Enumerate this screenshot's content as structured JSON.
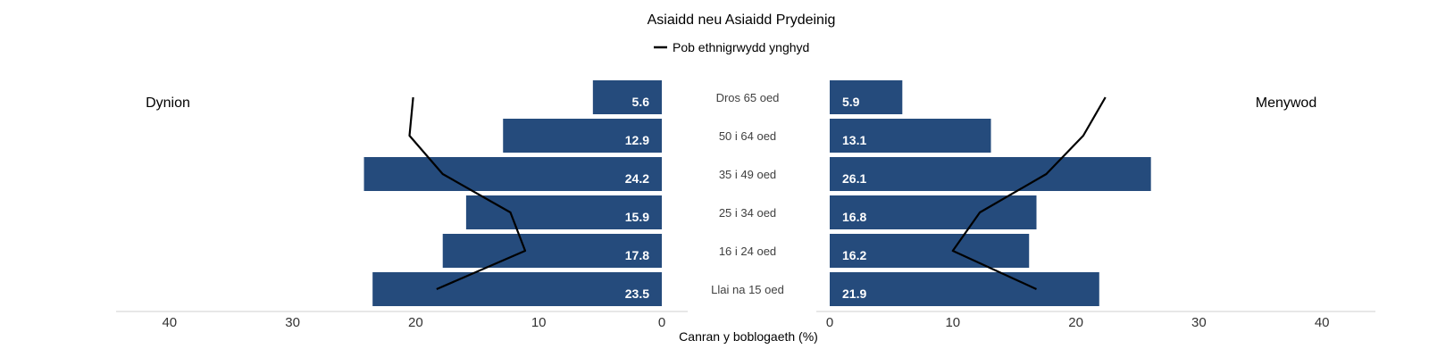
{
  "chart_data": {
    "type": "bar",
    "orientation": "horizontal-population-pyramid",
    "title": "Asiaidd neu Asiaidd Prydeinig",
    "xlabel": "Canran y boblogaeth (%)",
    "legend": {
      "entries": [
        "Pob ethnigrwydd ynghyd"
      ],
      "placement": "top"
    },
    "left_panel_label": "Dynion",
    "right_panel_label": "Menywod",
    "categories": [
      "Dros 65 oed",
      "50 i 64 oed",
      "35 i 49 oed",
      "25 i 34 oed",
      "16 i 24 oed",
      "Llai na 15 oed"
    ],
    "series": [
      {
        "values": [
          5.6,
          12.9,
          24.2,
          15.9,
          17.8,
          23.5
        ],
        "labels": [
          "5.6",
          "12.9",
          "24.2",
          "15.9",
          "17.8",
          "23.5"
        ]
      },
      {
        "values": [
          5.9,
          13.1,
          26.1,
          16.8,
          16.2,
          21.9
        ],
        "labels": [
          "5.9",
          "13.1",
          "26.1",
          "16.8",
          "16.2",
          "21.9"
        ]
      }
    ],
    "line_series": [
      {
        "name": "Pob ethnigrwydd ynghyd",
        "panel": "left",
        "values": [
          20.2,
          20.5,
          17.8,
          12.3,
          11.1,
          18.3
        ]
      },
      {
        "name": "Pob ethnigrwydd ynghyd",
        "panel": "right",
        "values": [
          22.4,
          20.6,
          17.6,
          12.2,
          10.0,
          16.8
        ]
      }
    ],
    "x_ticks": [
      "40",
      "30",
      "20",
      "10",
      "0"
    ],
    "xlim": [
      0,
      40
    ],
    "bar_color": "#254b7c",
    "line_color": "#000000",
    "grid": false
  }
}
